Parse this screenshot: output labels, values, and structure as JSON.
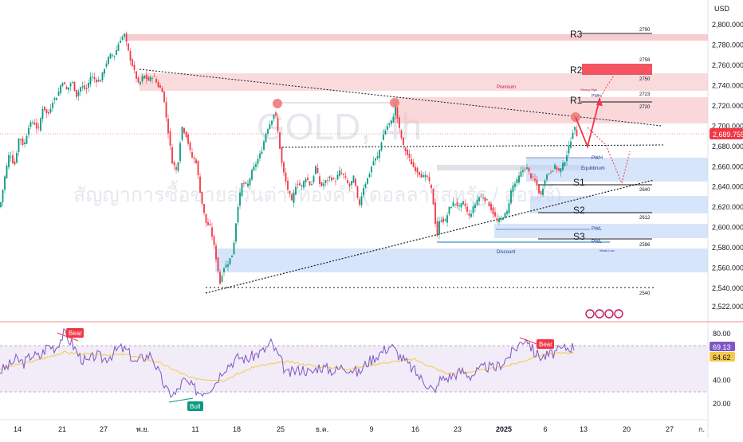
{
  "header": {
    "currency": "USD",
    "watermark_symbol": "GOLD, 4h",
    "watermark_desc": "สัญญาการซื้อขายส่วนต่างทองคำ (ดอลลาร์สหรัฐ / ออนซ์)"
  },
  "colors": {
    "up": "#089981",
    "down": "#f23645",
    "resistance_band": "#f5b7b9",
    "support_band": "#bcd3f7",
    "rsi_line": "#7e57c2",
    "rsi_ma": "#f7c948",
    "rsi_band": "#ede7f6",
    "price_tag": "#f23645"
  },
  "chart_data": [
    {
      "type": "candlestick",
      "title": "",
      "ylim": [
        2514,
        2820
      ],
      "y_ticks": [
        "2,800.000",
        "2,780.000",
        "2,760.000",
        "2,740.000",
        "2,720.000",
        "2,700.000",
        "2,680.000",
        "2,660.000",
        "2,640.000",
        "2,620.000",
        "2,600.000",
        "2,580.000",
        "2,560.000",
        "2,540.000",
        "2,522.000"
      ],
      "y_tick_values": [
        2800,
        2780,
        2760,
        2740,
        2720,
        2700,
        2680,
        2660,
        2640,
        2620,
        2600,
        2580,
        2560,
        2540,
        2522
      ],
      "x_ticks": [
        "14",
        "21",
        "27",
        "พ.ย.",
        "11",
        "18",
        "25",
        "ธ.ค.",
        "9",
        "16",
        "23",
        "2025",
        "6",
        "13",
        "20",
        "27",
        "ก."
      ],
      "current_price": "2,689.755",
      "current_price_value": 2689.755,
      "price_path": [
        [
          0,
          2620
        ],
        [
          6,
          2650
        ],
        [
          12,
          2675
        ],
        [
          18,
          2660
        ],
        [
          24,
          2690
        ],
        [
          30,
          2680
        ],
        [
          36,
          2700
        ],
        [
          42,
          2705
        ],
        [
          48,
          2695
        ],
        [
          54,
          2720
        ],
        [
          60,
          2710
        ],
        [
          66,
          2725
        ],
        [
          72,
          2730
        ],
        [
          78,
          2745
        ],
        [
          84,
          2735
        ],
        [
          90,
          2745
        ],
        [
          96,
          2730
        ],
        [
          102,
          2740
        ],
        [
          108,
          2735
        ],
        [
          114,
          2750
        ],
        [
          120,
          2745
        ],
        [
          126,
          2745
        ],
        [
          132,
          2760
        ],
        [
          138,
          2770
        ],
        [
          144,
          2770
        ],
        [
          150,
          2785
        ],
        [
          156,
          2790
        ],
        [
          162,
          2770
        ],
        [
          168,
          2755
        ],
        [
          174,
          2740
        ],
        [
          180,
          2750
        ],
        [
          186,
          2745
        ],
        [
          192,
          2750
        ],
        [
          198,
          2740
        ],
        [
          204,
          2735
        ],
        [
          210,
          2700
        ],
        [
          216,
          2665
        ],
        [
          222,
          2655
        ],
        [
          228,
          2700
        ],
        [
          234,
          2690
        ],
        [
          240,
          2670
        ],
        [
          246,
          2665
        ],
        [
          252,
          2630
        ],
        [
          258,
          2605
        ],
        [
          264,
          2600
        ],
        [
          270,
          2575
        ],
        [
          276,
          2545
        ],
        [
          280,
          2560
        ],
        [
          286,
          2565
        ],
        [
          292,
          2575
        ],
        [
          298,
          2620
        ],
        [
          304,
          2645
        ],
        [
          310,
          2640
        ],
        [
          316,
          2655
        ],
        [
          322,
          2665
        ],
        [
          328,
          2675
        ],
        [
          334,
          2695
        ],
        [
          340,
          2705
        ],
        [
          345,
          2715
        ],
        [
          350,
          2685
        ],
        [
          354,
          2660
        ],
        [
          360,
          2640
        ],
        [
          366,
          2625
        ],
        [
          372,
          2645
        ],
        [
          378,
          2640
        ],
        [
          384,
          2650
        ],
        [
          390,
          2640
        ],
        [
          396,
          2660
        ],
        [
          402,
          2640
        ],
        [
          408,
          2645
        ],
        [
          414,
          2650
        ],
        [
          420,
          2645
        ],
        [
          426,
          2655
        ],
        [
          432,
          2650
        ],
        [
          438,
          2640
        ],
        [
          444,
          2650
        ],
        [
          450,
          2620
        ],
        [
          456,
          2640
        ],
        [
          462,
          2650
        ],
        [
          468,
          2665
        ],
        [
          474,
          2670
        ],
        [
          480,
          2690
        ],
        [
          486,
          2700
        ],
        [
          492,
          2705
        ],
        [
          496,
          2720
        ],
        [
          500,
          2700
        ],
        [
          506,
          2680
        ],
        [
          512,
          2670
        ],
        [
          518,
          2660
        ],
        [
          524,
          2655
        ],
        [
          530,
          2650
        ],
        [
          536,
          2650
        ],
        [
          542,
          2635
        ],
        [
          548,
          2590
        ],
        [
          552,
          2610
        ],
        [
          558,
          2605
        ],
        [
          564,
          2620
        ],
        [
          570,
          2625
        ],
        [
          576,
          2620
        ],
        [
          582,
          2625
        ],
        [
          588,
          2610
        ],
        [
          594,
          2620
        ],
        [
          600,
          2630
        ],
        [
          606,
          2630
        ],
        [
          612,
          2625
        ],
        [
          618,
          2615
        ],
        [
          624,
          2605
        ],
        [
          630,
          2610
        ],
        [
          636,
          2615
        ],
        [
          642,
          2640
        ],
        [
          648,
          2645
        ],
        [
          654,
          2655
        ],
        [
          660,
          2660
        ],
        [
          666,
          2650
        ],
        [
          672,
          2645
        ],
        [
          678,
          2630
        ],
        [
          684,
          2650
        ],
        [
          690,
          2655
        ],
        [
          696,
          2660
        ],
        [
          702,
          2655
        ],
        [
          708,
          2665
        ],
        [
          714,
          2680
        ],
        [
          720,
          2700
        ],
        [
          724,
          2690
        ]
      ]
    },
    {
      "type": "line",
      "title": "",
      "ylim": [
        10,
        90
      ],
      "y_ticks": [
        "80.00",
        "40.00",
        "20.00"
      ],
      "y_tick_values": [
        80,
        40,
        20
      ],
      "rsi_value": "69.13",
      "rsi_ma_value": "64.62",
      "rsi_levels": [
        70,
        30
      ],
      "rsi_path": [
        [
          0,
          48
        ],
        [
          10,
          52
        ],
        [
          20,
          58
        ],
        [
          30,
          55
        ],
        [
          40,
          62
        ],
        [
          50,
          60
        ],
        [
          60,
          70
        ],
        [
          70,
          68
        ],
        [
          80,
          80
        ],
        [
          90,
          72
        ],
        [
          100,
          60
        ],
        [
          110,
          55
        ],
        [
          120,
          62
        ],
        [
          130,
          58
        ],
        [
          140,
          62
        ],
        [
          150,
          68
        ],
        [
          160,
          65
        ],
        [
          170,
          55
        ],
        [
          180,
          60
        ],
        [
          190,
          62
        ],
        [
          200,
          45
        ],
        [
          210,
          30
        ],
        [
          220,
          28
        ],
        [
          230,
          40
        ],
        [
          240,
          35
        ],
        [
          250,
          30
        ],
        [
          260,
          32
        ],
        [
          270,
          38
        ],
        [
          280,
          50
        ],
        [
          290,
          55
        ],
        [
          300,
          60
        ],
        [
          310,
          58
        ],
        [
          320,
          62
        ],
        [
          330,
          65
        ],
        [
          340,
          72
        ],
        [
          350,
          60
        ],
        [
          360,
          45
        ],
        [
          370,
          48
        ],
        [
          380,
          50
        ],
        [
          390,
          46
        ],
        [
          400,
          52
        ],
        [
          410,
          50
        ],
        [
          420,
          48
        ],
        [
          430,
          52
        ],
        [
          440,
          50
        ],
        [
          450,
          46
        ],
        [
          460,
          55
        ],
        [
          470,
          60
        ],
        [
          480,
          65
        ],
        [
          490,
          70
        ],
        [
          500,
          62
        ],
        [
          510,
          55
        ],
        [
          520,
          48
        ],
        [
          530,
          40
        ],
        [
          540,
          35
        ],
        [
          546,
          28
        ],
        [
          550,
          40
        ],
        [
          560,
          42
        ],
        [
          570,
          45
        ],
        [
          580,
          48
        ],
        [
          590,
          44
        ],
        [
          600,
          48
        ],
        [
          610,
          52
        ],
        [
          620,
          50
        ],
        [
          630,
          55
        ],
        [
          640,
          62
        ],
        [
          650,
          70
        ],
        [
          660,
          77
        ],
        [
          670,
          64
        ],
        [
          680,
          60
        ],
        [
          690,
          62
        ],
        [
          700,
          65
        ],
        [
          710,
          68
        ],
        [
          720,
          69
        ]
      ],
      "rsi_ma_path": [
        [
          0,
          50
        ],
        [
          40,
          56
        ],
        [
          80,
          64
        ],
        [
          120,
          62
        ],
        [
          160,
          62
        ],
        [
          200,
          55
        ],
        [
          240,
          42
        ],
        [
          280,
          40
        ],
        [
          320,
          52
        ],
        [
          360,
          56
        ],
        [
          400,
          52
        ],
        [
          440,
          50
        ],
        [
          480,
          55
        ],
        [
          520,
          58
        ],
        [
          560,
          46
        ],
        [
          600,
          48
        ],
        [
          640,
          53
        ],
        [
          680,
          62
        ],
        [
          720,
          64
        ]
      ]
    }
  ],
  "annotations": {
    "levels": [
      {
        "label": "R3",
        "value": "2790"
      },
      {
        "label": "R2",
        "value": "2758",
        "value2": "2750"
      },
      {
        "label": "R1",
        "value": "2723",
        "value2": "2720"
      },
      {
        "label": "S1",
        "value": "2640"
      },
      {
        "label": "S2",
        "value": "2612"
      },
      {
        "label": "S3",
        "value": "2586"
      }
    ],
    "bottom_level": "2540",
    "zones": {
      "premium": "Premium",
      "discount": "Discount",
      "equilibrium": "Equilibrium"
    },
    "small_labels": {
      "strong_high": "Strong High",
      "pwh": "PWH",
      "pwl": "PWL",
      "weak_low": "Weak Low"
    },
    "rsi_labels": {
      "bear": "Bear",
      "bull": "Bull"
    }
  }
}
